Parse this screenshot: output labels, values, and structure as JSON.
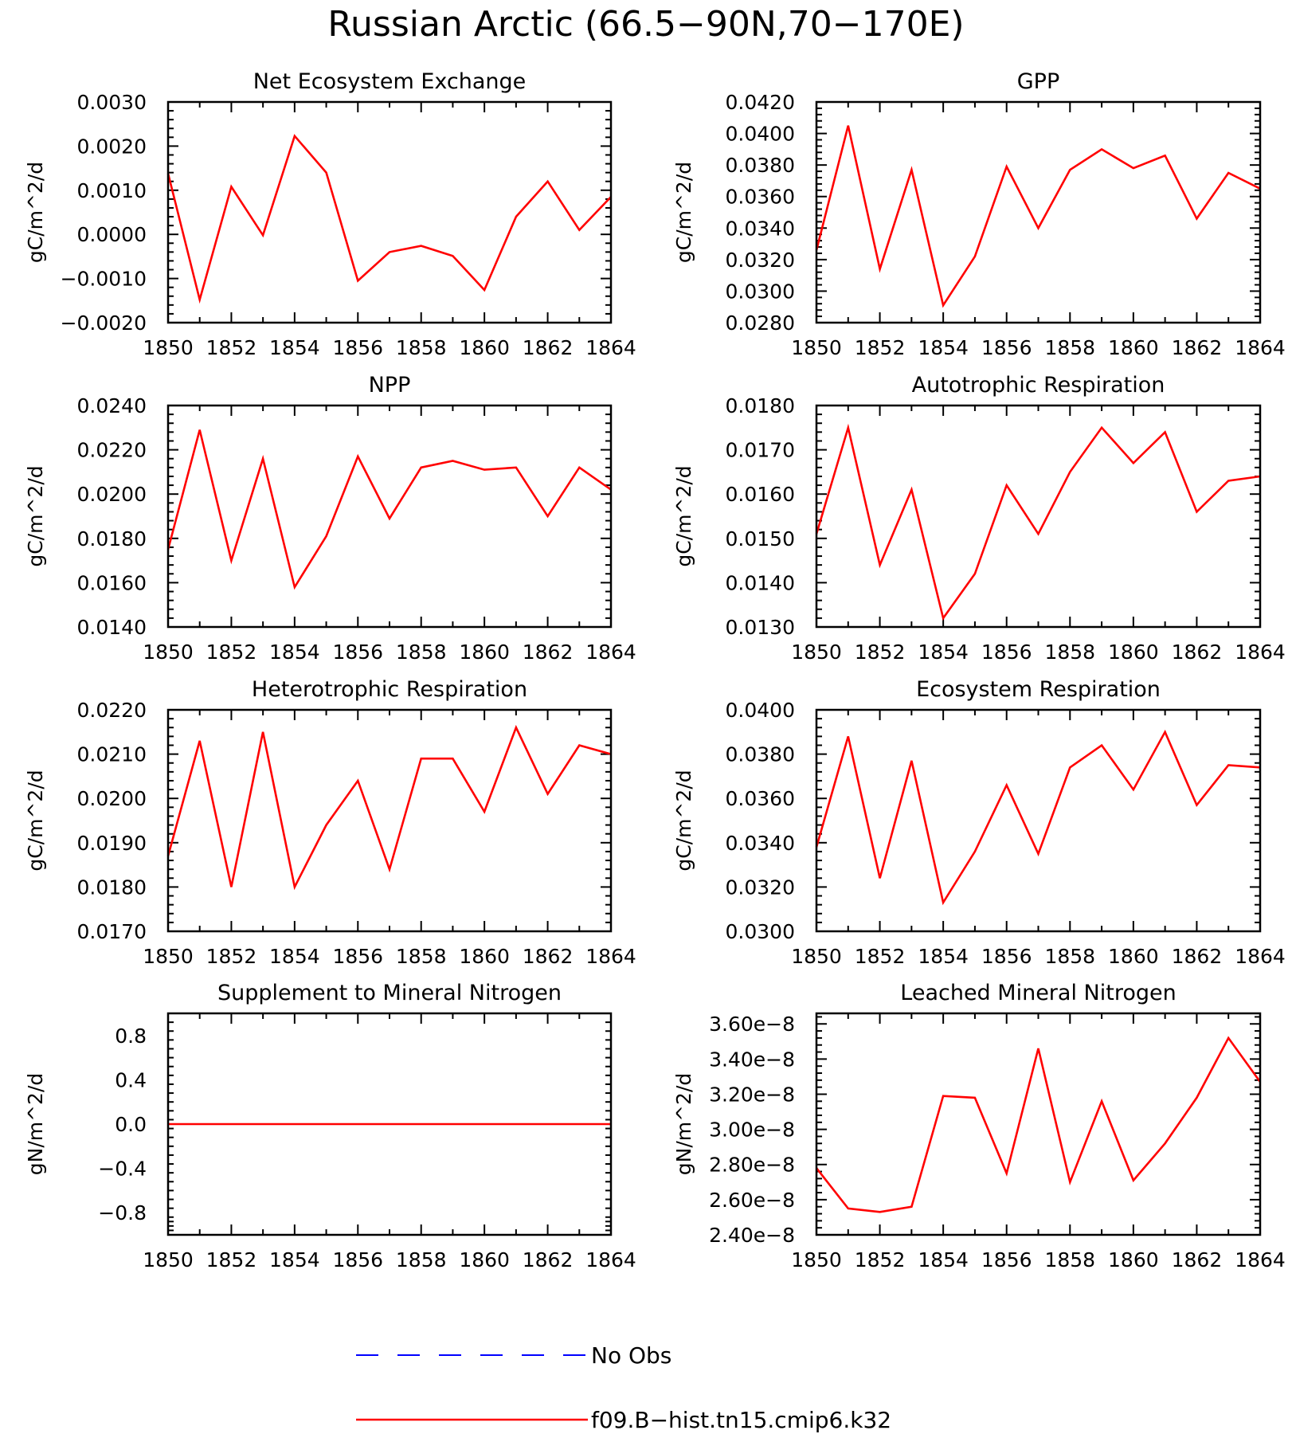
{
  "title": "Russian Arctic (66.5−90N,70−170E)",
  "colors": {
    "model": "#ff0000",
    "obs": "#0000ff",
    "frame": "#000000"
  },
  "legend": {
    "obs_label": "No Obs",
    "model_label": "f09.B−hist.tn15.cmip6.k32"
  },
  "chart_data": [
    {
      "type": "line",
      "title": "Net Ecosystem Exchange",
      "ylabel": "gC/m^2/d",
      "xlim": [
        1850,
        1864
      ],
      "ylim": [
        -0.002,
        0.003
      ],
      "xticks": [
        1850,
        1852,
        1854,
        1856,
        1858,
        1860,
        1862,
        1864
      ],
      "xtick_labels": [
        "1850",
        "1852",
        "1854",
        "1856",
        "1858",
        "1860",
        "1862",
        "1864"
      ],
      "yticks": [
        -0.002,
        -0.001,
        0.0,
        0.001,
        0.002,
        0.003
      ],
      "ytick_labels": [
        "−0.0020",
        "−0.0010",
        "0.0000",
        "0.0010",
        "0.0020",
        "0.0030"
      ],
      "x": [
        1850,
        1851,
        1852,
        1853,
        1854,
        1855,
        1856,
        1857,
        1858,
        1859,
        1860,
        1861,
        1862,
        1863,
        1864
      ],
      "series": [
        {
          "name": "f09.B−hist.tn15.cmip6.k32",
          "values": [
            0.00138,
            -0.00148,
            0.00108,
            -2e-05,
            0.00223,
            0.0014,
            -0.00105,
            -0.0004,
            -0.00026,
            -0.00049,
            -0.00126,
            0.0004,
            0.0012,
            0.0001,
            0.00085
          ]
        }
      ]
    },
    {
      "type": "line",
      "title": "GPP",
      "ylabel": "gC/m^2/d",
      "xlim": [
        1850,
        1864
      ],
      "ylim": [
        0.028,
        0.042
      ],
      "xticks": [
        1850,
        1852,
        1854,
        1856,
        1858,
        1860,
        1862,
        1864
      ],
      "xtick_labels": [
        "1850",
        "1852",
        "1854",
        "1856",
        "1858",
        "1860",
        "1862",
        "1864"
      ],
      "yticks": [
        0.028,
        0.03,
        0.032,
        0.034,
        0.036,
        0.038,
        0.04,
        0.042
      ],
      "ytick_labels": [
        "0.0280",
        "0.0300",
        "0.0320",
        "0.0340",
        "0.0360",
        "0.0380",
        "0.0400",
        "0.0420"
      ],
      "x": [
        1850,
        1851,
        1852,
        1853,
        1854,
        1855,
        1856,
        1857,
        1858,
        1859,
        1860,
        1861,
        1862,
        1863,
        1864
      ],
      "series": [
        {
          "name": "f09.B−hist.tn15.cmip6.k32",
          "values": [
            0.0326,
            0.0405,
            0.0314,
            0.0377,
            0.0291,
            0.0322,
            0.0379,
            0.034,
            0.0377,
            0.039,
            0.0378,
            0.0386,
            0.0346,
            0.0375,
            0.0365
          ]
        }
      ]
    },
    {
      "type": "line",
      "title": "NPP",
      "ylabel": "gC/m^2/d",
      "xlim": [
        1850,
        1864
      ],
      "ylim": [
        0.014,
        0.024
      ],
      "xticks": [
        1850,
        1852,
        1854,
        1856,
        1858,
        1860,
        1862,
        1864
      ],
      "xtick_labels": [
        "1850",
        "1852",
        "1854",
        "1856",
        "1858",
        "1860",
        "1862",
        "1864"
      ],
      "yticks": [
        0.014,
        0.016,
        0.018,
        0.02,
        0.022,
        0.024
      ],
      "ytick_labels": [
        "0.0140",
        "0.0160",
        "0.0180",
        "0.0200",
        "0.0220",
        "0.0240"
      ],
      "x": [
        1850,
        1851,
        1852,
        1853,
        1854,
        1855,
        1856,
        1857,
        1858,
        1859,
        1860,
        1861,
        1862,
        1863,
        1864
      ],
      "series": [
        {
          "name": "f09.B−hist.tn15.cmip6.k32",
          "values": [
            0.0175,
            0.0229,
            0.017,
            0.0216,
            0.0158,
            0.0181,
            0.0217,
            0.0189,
            0.0212,
            0.0215,
            0.0211,
            0.0212,
            0.019,
            0.0212,
            0.0202
          ]
        }
      ]
    },
    {
      "type": "line",
      "title": "Autotrophic Respiration",
      "ylabel": "gC/m^2/d",
      "xlim": [
        1850,
        1864
      ],
      "ylim": [
        0.013,
        0.018
      ],
      "xticks": [
        1850,
        1852,
        1854,
        1856,
        1858,
        1860,
        1862,
        1864
      ],
      "xtick_labels": [
        "1850",
        "1852",
        "1854",
        "1856",
        "1858",
        "1860",
        "1862",
        "1864"
      ],
      "yticks": [
        0.013,
        0.014,
        0.015,
        0.016,
        0.017,
        0.018
      ],
      "ytick_labels": [
        "0.0130",
        "0.0140",
        "0.0150",
        "0.0160",
        "0.0170",
        "0.0180"
      ],
      "x": [
        1850,
        1851,
        1852,
        1853,
        1854,
        1855,
        1856,
        1857,
        1858,
        1859,
        1860,
        1861,
        1862,
        1863,
        1864
      ],
      "series": [
        {
          "name": "f09.B−hist.tn15.cmip6.k32",
          "values": [
            0.0151,
            0.0175,
            0.0144,
            0.0161,
            0.0132,
            0.0142,
            0.0162,
            0.0151,
            0.0165,
            0.0175,
            0.0167,
            0.0174,
            0.0156,
            0.0163,
            0.0164
          ]
        }
      ]
    },
    {
      "type": "line",
      "title": "Heterotrophic Respiration",
      "ylabel": "gC/m^2/d",
      "xlim": [
        1850,
        1864
      ],
      "ylim": [
        0.017,
        0.022
      ],
      "xticks": [
        1850,
        1852,
        1854,
        1856,
        1858,
        1860,
        1862,
        1864
      ],
      "xtick_labels": [
        "1850",
        "1852",
        "1854",
        "1856",
        "1858",
        "1860",
        "1862",
        "1864"
      ],
      "yticks": [
        0.017,
        0.018,
        0.019,
        0.02,
        0.021,
        0.022
      ],
      "ytick_labels": [
        "0.0170",
        "0.0180",
        "0.0190",
        "0.0200",
        "0.0210",
        "0.0220"
      ],
      "x": [
        1850,
        1851,
        1852,
        1853,
        1854,
        1855,
        1856,
        1857,
        1858,
        1859,
        1860,
        1861,
        1862,
        1863,
        1864
      ],
      "series": [
        {
          "name": "f09.B−hist.tn15.cmip6.k32",
          "values": [
            0.0187,
            0.0213,
            0.018,
            0.0215,
            0.018,
            0.0194,
            0.0204,
            0.0184,
            0.0209,
            0.0209,
            0.0197,
            0.0216,
            0.0201,
            0.0212,
            0.021
          ]
        }
      ]
    },
    {
      "type": "line",
      "title": "Ecosystem Respiration",
      "ylabel": "gC/m^2/d",
      "xlim": [
        1850,
        1864
      ],
      "ylim": [
        0.03,
        0.04
      ],
      "xticks": [
        1850,
        1852,
        1854,
        1856,
        1858,
        1860,
        1862,
        1864
      ],
      "xtick_labels": [
        "1850",
        "1852",
        "1854",
        "1856",
        "1858",
        "1860",
        "1862",
        "1864"
      ],
      "yticks": [
        0.03,
        0.032,
        0.034,
        0.036,
        0.038,
        0.04
      ],
      "ytick_labels": [
        "0.0300",
        "0.0320",
        "0.0340",
        "0.0360",
        "0.0380",
        "0.0400"
      ],
      "x": [
        1850,
        1851,
        1852,
        1853,
        1854,
        1855,
        1856,
        1857,
        1858,
        1859,
        1860,
        1861,
        1862,
        1863,
        1864
      ],
      "series": [
        {
          "name": "f09.B−hist.tn15.cmip6.k32",
          "values": [
            0.0338,
            0.0388,
            0.0324,
            0.0377,
            0.0313,
            0.0336,
            0.0366,
            0.0335,
            0.0374,
            0.0384,
            0.0364,
            0.039,
            0.0357,
            0.0375,
            0.0374
          ]
        }
      ]
    },
    {
      "type": "line",
      "title": "Supplement to Mineral Nitrogen",
      "ylabel": "gN/m^2/d",
      "xlim": [
        1850,
        1864
      ],
      "ylim": [
        -1.0,
        1.0
      ],
      "xticks": [
        1850,
        1852,
        1854,
        1856,
        1858,
        1860,
        1862,
        1864
      ],
      "xtick_labels": [
        "1850",
        "1852",
        "1854",
        "1856",
        "1858",
        "1860",
        "1862",
        "1864"
      ],
      "yticks": [
        -0.8,
        -0.4,
        0.0,
        0.4,
        0.8
      ],
      "ytick_labels": [
        "−0.8",
        "−0.4",
        "0.0",
        "0.4",
        "0.8"
      ],
      "x": [
        1850,
        1851,
        1852,
        1853,
        1854,
        1855,
        1856,
        1857,
        1858,
        1859,
        1860,
        1861,
        1862,
        1863,
        1864
      ],
      "series": [
        {
          "name": "f09.B−hist.tn15.cmip6.k32",
          "values": [
            0,
            0,
            0,
            0,
            0,
            0,
            0,
            0,
            0,
            0,
            0,
            0,
            0,
            0,
            0
          ]
        }
      ]
    },
    {
      "type": "line",
      "title": "Leached Mineral Nitrogen",
      "ylabel": "gN/m^2/d",
      "xlim": [
        1850,
        1864
      ],
      "ylim": [
        2.4e-08,
        3.66e-08
      ],
      "xticks": [
        1850,
        1852,
        1854,
        1856,
        1858,
        1860,
        1862,
        1864
      ],
      "xtick_labels": [
        "1850",
        "1852",
        "1854",
        "1856",
        "1858",
        "1860",
        "1862",
        "1864"
      ],
      "yticks": [
        2.4e-08,
        2.6e-08,
        2.8e-08,
        3e-08,
        3.2e-08,
        3.4e-08,
        3.6e-08
      ],
      "ytick_labels": [
        "2.40e−8",
        "2.60e−8",
        "2.80e−8",
        "3.00e−8",
        "3.20e−8",
        "3.40e−8",
        "3.60e−8"
      ],
      "x": [
        1850,
        1851,
        1852,
        1853,
        1854,
        1855,
        1856,
        1857,
        1858,
        1859,
        1860,
        1861,
        1862,
        1863,
        1864
      ],
      "series": [
        {
          "name": "f09.B−hist.tn15.cmip6.k32",
          "values": [
            2.78e-08,
            2.55e-08,
            2.53e-08,
            2.56e-08,
            3.19e-08,
            3.18e-08,
            2.75e-08,
            3.46e-08,
            2.7e-08,
            3.16e-08,
            2.71e-08,
            2.92e-08,
            3.18e-08,
            3.52e-08,
            3.27e-08
          ]
        }
      ]
    }
  ]
}
